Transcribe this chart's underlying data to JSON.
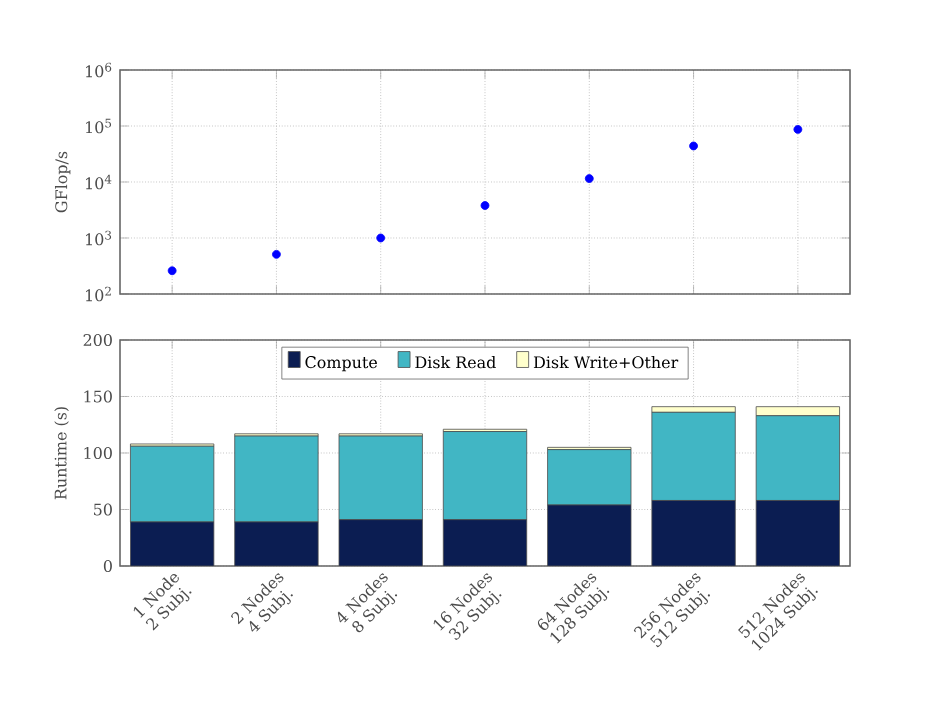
{
  "chart_data": [
    {
      "type": "scatter",
      "ylabel": "GFlop/s",
      "log": "y",
      "grid": true,
      "marker": "circle",
      "tick_labels": "y",
      "categories": [
        null,
        null,
        null,
        null,
        null,
        null,
        null
      ],
      "ylim": [
        100,
        1000000
      ],
      "yticks": [
        {
          "value": 100,
          "label": "10$^{2}$"
        },
        {
          "value": 1000,
          "label": "10$^{3}$"
        },
        {
          "value": 10000,
          "label": "10$^{4}$"
        },
        {
          "value": 100000,
          "label": "10$^{5}$"
        },
        {
          "value": 1000000,
          "label": "10$^{6}$"
        }
      ],
      "series": [
        {
          "color": "#0000ff",
          "values": [
            260,
            510,
            1000,
            3800,
            11500,
            44000,
            87000
          ]
        }
      ]
    },
    {
      "type": "bar",
      "stacked": true,
      "ylabel": "Runtime (s)",
      "grid": true,
      "legend": "top",
      "categories": [
        "1 Node\n2 Subj.",
        "2 Nodes\n4 Subj.",
        "4 Nodes\n8 Subj.",
        "16 Nodes\n32 Subj.",
        "64 Nodes\n128 Subj.",
        "256 Nodes\n512 Subj.",
        "512 Nodes\n1024 Subj."
      ],
      "ylim": [
        0,
        200
      ],
      "yticks": [
        0,
        50,
        100,
        150,
        200
      ],
      "series": [
        {
          "name": "Compute",
          "color": "#0b1d52",
          "values": [
            39,
            39,
            41,
            41,
            54,
            58,
            58
          ]
        },
        {
          "name": "Disk Read",
          "color": "#41b6c4",
          "values": [
            67,
            76,
            74,
            78,
            49,
            78,
            75
          ]
        },
        {
          "name": "Disk Write+Other",
          "color": "#ffffcc",
          "values": [
            2,
            2,
            2,
            2,
            2,
            5,
            8
          ]
        }
      ]
    }
  ]
}
